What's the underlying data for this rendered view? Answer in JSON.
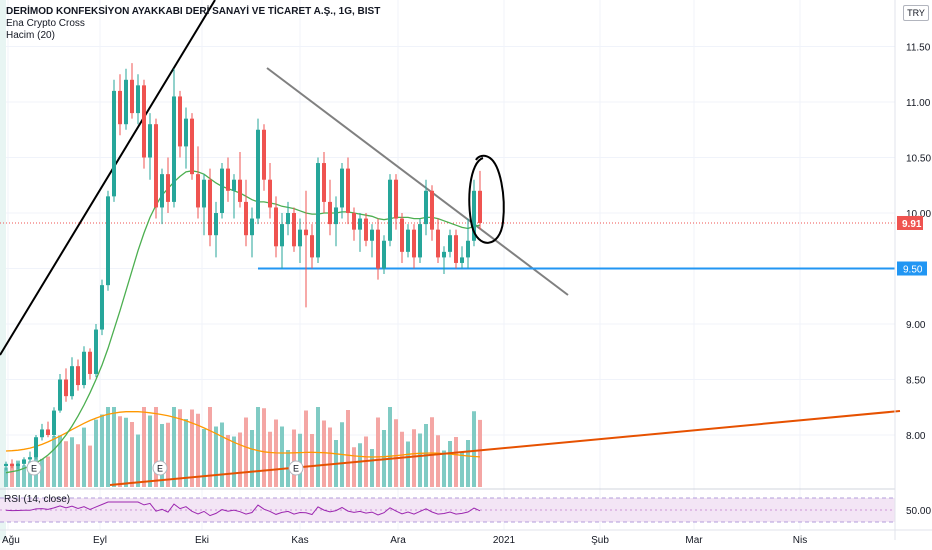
{
  "header": {
    "title": "DERİMOD KONFEKSİYON AYAKKABI DERİ SANAYİ VE TİCARET A.Ş., 1G, BIST",
    "indicator_1": "Ena Crypto Cross",
    "indicator_2": "Hacim (20)",
    "currency": "TRY"
  },
  "rsi": {
    "label": "RSI (14, close)",
    "level_label": "50.00"
  },
  "colors": {
    "up": "#26a69a",
    "down": "#ef5350",
    "ma": "#4caf50",
    "vol_ma": "#ff9800",
    "support": "#2196f3",
    "price_badge": "#ef5350",
    "orange_trend": "#e65100",
    "rsi": "#9c27b0"
  },
  "chart_data": {
    "type": "candlestick",
    "x_ticks": [
      "Ağu",
      "Eyl",
      "Eki",
      "Kas",
      "Ara",
      "2021",
      "Şub",
      "Mar",
      "Nis"
    ],
    "y_ticks": [
      "11.50",
      "11.00",
      "10.50",
      "10.00",
      "9.00",
      "8.50",
      "8.00"
    ],
    "y_range": [
      7.65,
      11.7
    ],
    "last_price": 9.91,
    "last_price_label": "9.91",
    "support_level": 9.5,
    "support_label": "9.50",
    "ohlc": [
      [
        7.72,
        7.76,
        7.68,
        7.74
      ],
      [
        7.74,
        7.78,
        7.7,
        7.72
      ],
      [
        7.72,
        7.75,
        7.69,
        7.74
      ],
      [
        7.74,
        7.8,
        7.72,
        7.78
      ],
      [
        7.78,
        7.85,
        7.75,
        7.8
      ],
      [
        7.8,
        8.0,
        7.78,
        7.98
      ],
      [
        7.98,
        8.1,
        7.95,
        8.05
      ],
      [
        8.05,
        8.12,
        7.98,
        8.0
      ],
      [
        8.0,
        8.25,
        7.98,
        8.22
      ],
      [
        8.22,
        8.55,
        8.2,
        8.5
      ],
      [
        8.5,
        8.6,
        8.3,
        8.35
      ],
      [
        8.35,
        8.7,
        8.32,
        8.62
      ],
      [
        8.62,
        8.68,
        8.4,
        8.45
      ],
      [
        8.45,
        8.8,
        8.42,
        8.75
      ],
      [
        8.75,
        8.78,
        8.5,
        8.55
      ],
      [
        8.55,
        9.0,
        8.52,
        8.95
      ],
      [
        8.95,
        9.4,
        8.9,
        9.35
      ],
      [
        9.35,
        10.2,
        9.3,
        10.15
      ],
      [
        10.15,
        11.2,
        10.1,
        11.1
      ],
      [
        11.1,
        11.25,
        10.7,
        10.8
      ],
      [
        10.8,
        11.3,
        10.75,
        11.2
      ],
      [
        11.2,
        11.35,
        10.85,
        10.9
      ],
      [
        10.9,
        11.25,
        10.8,
        11.15
      ],
      [
        11.15,
        11.2,
        10.4,
        10.5
      ],
      [
        10.5,
        10.9,
        10.3,
        10.8
      ],
      [
        10.8,
        10.85,
        9.95,
        10.05
      ],
      [
        10.05,
        10.4,
        9.9,
        10.35
      ],
      [
        10.35,
        10.5,
        10.0,
        10.1
      ],
      [
        10.1,
        11.3,
        10.05,
        11.05
      ],
      [
        11.05,
        11.1,
        10.5,
        10.6
      ],
      [
        10.6,
        10.95,
        10.4,
        10.85
      ],
      [
        10.85,
        10.9,
        10.3,
        10.35
      ],
      [
        10.35,
        10.6,
        9.95,
        10.05
      ],
      [
        10.05,
        10.35,
        9.8,
        10.3
      ],
      [
        10.3,
        10.4,
        9.7,
        9.8
      ],
      [
        9.8,
        10.1,
        9.6,
        10.0
      ],
      [
        10.0,
        10.45,
        9.95,
        10.4
      ],
      [
        10.4,
        10.5,
        10.1,
        10.2
      ],
      [
        10.2,
        10.35,
        9.95,
        10.3
      ],
      [
        10.3,
        10.55,
        10.05,
        10.1
      ],
      [
        10.1,
        10.3,
        9.7,
        9.8
      ],
      [
        9.8,
        10.05,
        9.6,
        9.95
      ],
      [
        9.95,
        10.85,
        9.9,
        10.75
      ],
      [
        10.75,
        10.8,
        10.2,
        10.3
      ],
      [
        10.3,
        10.45,
        9.95,
        10.05
      ],
      [
        10.05,
        10.15,
        9.6,
        9.7
      ],
      [
        9.7,
        10.0,
        9.5,
        9.9
      ],
      [
        9.9,
        10.1,
        9.8,
        10.0
      ],
      [
        10.0,
        10.05,
        9.65,
        9.7
      ],
      [
        9.7,
        9.95,
        9.55,
        9.85
      ],
      [
        9.85,
        10.2,
        9.15,
        9.8
      ],
      [
        9.8,
        9.9,
        9.5,
        9.6
      ],
      [
        9.6,
        10.5,
        9.55,
        10.45
      ],
      [
        10.45,
        10.55,
        10.0,
        10.1
      ],
      [
        10.1,
        10.3,
        9.8,
        9.9
      ],
      [
        9.9,
        10.15,
        9.7,
        10.05
      ],
      [
        10.05,
        10.45,
        9.95,
        10.4
      ],
      [
        10.4,
        10.5,
        9.9,
        10.0
      ],
      [
        10.0,
        10.05,
        9.75,
        9.85
      ],
      [
        9.85,
        10.0,
        9.65,
        9.95
      ],
      [
        9.95,
        10.0,
        9.7,
        9.75
      ],
      [
        9.75,
        9.9,
        9.6,
        9.85
      ],
      [
        9.85,
        9.95,
        9.4,
        9.5
      ],
      [
        9.5,
        9.8,
        9.45,
        9.75
      ],
      [
        9.75,
        10.35,
        9.7,
        10.3
      ],
      [
        10.3,
        10.35,
        9.85,
        9.95
      ],
      [
        9.95,
        10.0,
        9.55,
        9.65
      ],
      [
        9.65,
        9.9,
        9.6,
        9.85
      ],
      [
        9.85,
        9.9,
        9.5,
        9.6
      ],
      [
        9.6,
        9.95,
        9.55,
        9.9
      ],
      [
        9.9,
        10.3,
        9.8,
        10.2
      ],
      [
        10.2,
        10.25,
        9.75,
        9.85
      ],
      [
        9.85,
        9.95,
        9.55,
        9.6
      ],
      [
        9.6,
        9.7,
        9.45,
        9.65
      ],
      [
        9.65,
        9.85,
        9.6,
        9.8
      ],
      [
        9.8,
        9.85,
        9.5,
        9.55
      ],
      [
        9.55,
        9.7,
        9.5,
        9.6
      ],
      [
        9.6,
        9.95,
        9.5,
        9.75
      ],
      [
        9.75,
        10.3,
        9.7,
        10.2
      ],
      [
        10.2,
        10.38,
        9.85,
        9.91
      ]
    ],
    "ma_values": [
      7.66,
      7.67,
      7.68,
      7.7,
      7.72,
      7.75,
      7.78,
      7.82,
      7.87,
      7.93,
      8.0,
      8.08,
      8.17,
      8.27,
      8.38,
      8.5,
      8.63,
      8.78,
      8.95,
      9.12,
      9.3,
      9.48,
      9.66,
      9.82,
      9.96,
      10.07,
      10.16,
      10.22,
      10.28,
      10.33,
      10.37,
      10.38,
      10.37,
      10.35,
      10.31,
      10.27,
      10.24,
      10.22,
      10.2,
      10.18,
      10.15,
      10.12,
      10.1,
      10.1,
      10.09,
      10.08,
      10.06,
      10.05,
      10.04,
      10.02,
      10.0,
      9.99,
      9.99,
      10.0,
      10.0,
      10.0,
      10.01,
      10.01,
      10.0,
      9.99,
      9.98,
      9.97,
      9.95,
      9.94,
      9.95,
      9.96,
      9.96,
      9.96,
      9.95,
      9.95,
      9.96,
      9.96,
      9.95,
      9.93,
      9.91,
      9.89,
      9.87,
      9.86,
      9.88,
      9.89
    ]
  }
}
